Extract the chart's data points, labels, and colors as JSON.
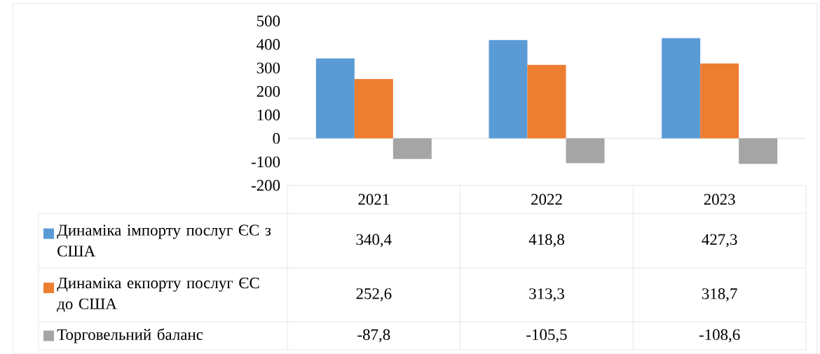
{
  "chart_data": {
    "type": "bar",
    "categories": [
      "2021",
      "2022",
      "2023"
    ],
    "series": [
      {
        "name": "Динаміка імпорту послуг ЄС з США",
        "color": "#5b9bd5",
        "values": [
          340.4,
          418.8,
          427.3
        ],
        "value_labels": [
          "340,4",
          "418,8",
          "427,3"
        ]
      },
      {
        "name": "Динаміка екпорту послуг ЄС до США",
        "color": "#ed7d31",
        "values": [
          252.6,
          313.3,
          318.7
        ],
        "value_labels": [
          "252,6",
          "313,3",
          "318,7"
        ]
      },
      {
        "name": "Торговельний баланс",
        "color": "#a5a5a5",
        "values": [
          -87.8,
          -105.5,
          -108.6
        ],
        "value_labels": [
          "-87,8",
          "-105,5",
          "-108,6"
        ]
      }
    ],
    "ylim": [
      -200,
      500
    ],
    "yticks": [
      -200,
      -100,
      0,
      100,
      200,
      300,
      400,
      500
    ],
    "legend": "bottom"
  }
}
